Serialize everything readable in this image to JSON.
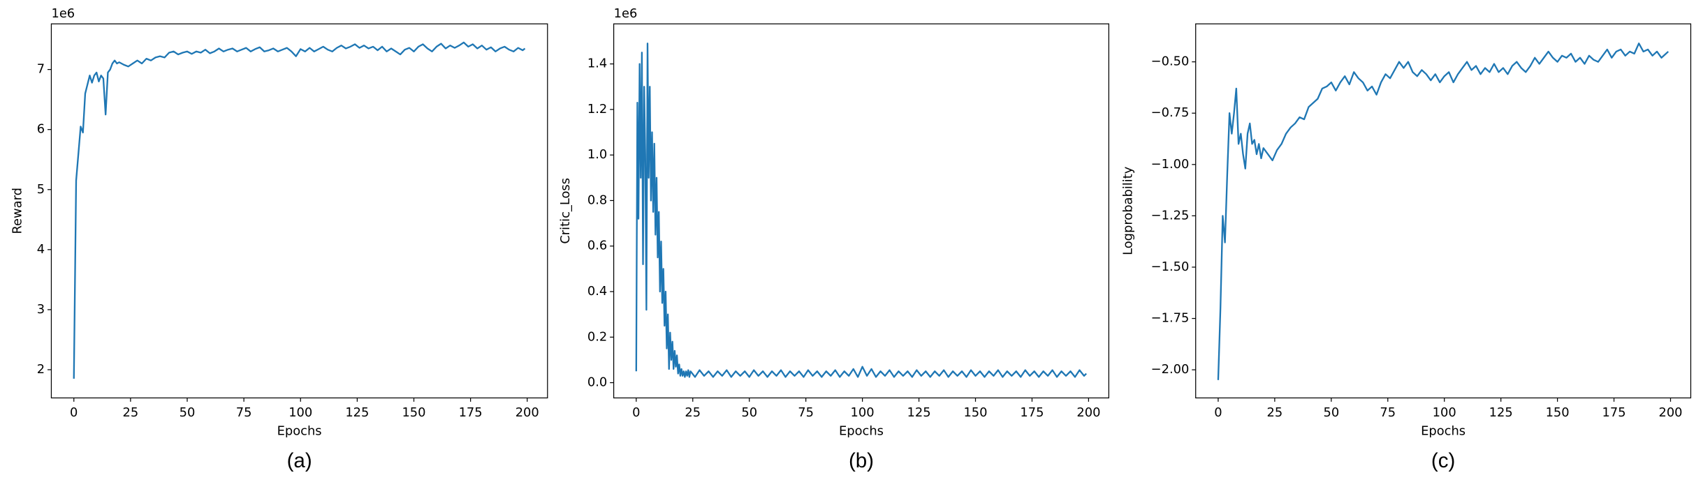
{
  "chart_data": [
    {
      "type": "line",
      "caption": "(a)",
      "xlabel": "Epochs",
      "ylabel": "Reward",
      "y_offset_text": "1e6",
      "color": "#1f77b4",
      "x": [
        0,
        1,
        2,
        3,
        4,
        5,
        6,
        7,
        8,
        9,
        10,
        11,
        12,
        13,
        14,
        15,
        16,
        17,
        18,
        19,
        20,
        22,
        24,
        26,
        28,
        30,
        32,
        34,
        36,
        38,
        40,
        42,
        44,
        46,
        48,
        50,
        52,
        54,
        56,
        58,
        60,
        62,
        64,
        66,
        68,
        70,
        72,
        74,
        76,
        78,
        80,
        82,
        84,
        86,
        88,
        90,
        92,
        94,
        96,
        98,
        100,
        102,
        104,
        106,
        108,
        110,
        112,
        114,
        116,
        118,
        120,
        122,
        124,
        126,
        128,
        130,
        132,
        134,
        136,
        138,
        140,
        142,
        144,
        146,
        148,
        150,
        152,
        154,
        156,
        158,
        160,
        162,
        164,
        166,
        168,
        170,
        172,
        174,
        176,
        178,
        180,
        182,
        184,
        186,
        188,
        190,
        192,
        194,
        196,
        198,
        199
      ],
      "values": [
        1.85,
        5.15,
        5.6,
        6.05,
        5.95,
        6.6,
        6.75,
        6.9,
        6.78,
        6.9,
        6.95,
        6.8,
        6.9,
        6.85,
        6.25,
        6.95,
        7.0,
        7.1,
        7.15,
        7.1,
        7.12,
        7.08,
        7.05,
        7.1,
        7.15,
        7.1,
        7.18,
        7.15,
        7.2,
        7.22,
        7.2,
        7.28,
        7.3,
        7.25,
        7.28,
        7.3,
        7.26,
        7.3,
        7.28,
        7.33,
        7.27,
        7.3,
        7.35,
        7.3,
        7.33,
        7.35,
        7.3,
        7.33,
        7.36,
        7.3,
        7.34,
        7.37,
        7.3,
        7.32,
        7.35,
        7.3,
        7.33,
        7.36,
        7.3,
        7.22,
        7.34,
        7.3,
        7.36,
        7.3,
        7.34,
        7.38,
        7.33,
        7.3,
        7.36,
        7.4,
        7.35,
        7.38,
        7.42,
        7.36,
        7.4,
        7.35,
        7.38,
        7.32,
        7.38,
        7.3,
        7.35,
        7.3,
        7.25,
        7.33,
        7.36,
        7.3,
        7.38,
        7.42,
        7.35,
        7.3,
        7.38,
        7.43,
        7.35,
        7.4,
        7.36,
        7.4,
        7.45,
        7.38,
        7.42,
        7.35,
        7.4,
        7.33,
        7.37,
        7.3,
        7.35,
        7.38,
        7.33,
        7.3,
        7.36,
        7.32,
        7.35
      ],
      "xlim": [
        -9.95,
        208.95
      ],
      "xticks": [
        0,
        25,
        50,
        75,
        100,
        125,
        150,
        175,
        200
      ],
      "ylim": [
        1.53,
        7.76
      ],
      "yticks": [
        2,
        3,
        4,
        5,
        6,
        7
      ]
    },
    {
      "type": "line",
      "caption": "(b)",
      "xlabel": "Epochs",
      "ylabel": "Critic_Loss",
      "y_offset_text": "1e6",
      "color": "#1f77b4",
      "x": [
        0,
        0.5,
        1,
        1.5,
        2,
        2.5,
        3,
        3.5,
        4,
        4.5,
        5,
        5.5,
        6,
        6.5,
        7,
        7.5,
        8,
        8.5,
        9,
        9.5,
        10,
        10.5,
        11,
        11.5,
        12,
        12.5,
        13,
        13.5,
        14,
        14.5,
        15,
        15.5,
        16,
        16.5,
        17,
        17.5,
        18,
        18.5,
        19,
        19.5,
        20,
        20.5,
        21,
        21.5,
        22,
        22.5,
        23,
        23.5,
        24,
        26,
        28,
        30,
        32,
        34,
        36,
        38,
        40,
        42,
        44,
        46,
        48,
        50,
        52,
        54,
        56,
        58,
        60,
        62,
        64,
        66,
        68,
        70,
        72,
        74,
        76,
        78,
        80,
        82,
        84,
        86,
        88,
        90,
        92,
        94,
        96,
        98,
        100,
        102,
        104,
        106,
        108,
        110,
        112,
        114,
        116,
        118,
        120,
        122,
        124,
        126,
        128,
        130,
        132,
        134,
        136,
        138,
        140,
        142,
        144,
        146,
        148,
        150,
        152,
        154,
        156,
        158,
        160,
        162,
        164,
        166,
        168,
        170,
        172,
        174,
        176,
        178,
        180,
        182,
        184,
        186,
        188,
        190,
        192,
        194,
        196,
        198,
        199
      ],
      "values": [
        0.05,
        1.23,
        0.72,
        1.4,
        0.9,
        1.45,
        0.52,
        1.3,
        1.0,
        0.32,
        1.49,
        0.9,
        1.3,
        0.8,
        1.1,
        0.75,
        1.05,
        0.65,
        0.9,
        0.55,
        0.75,
        0.4,
        0.62,
        0.35,
        0.5,
        0.25,
        0.4,
        0.15,
        0.3,
        0.06,
        0.22,
        0.1,
        0.18,
        0.06,
        0.14,
        0.07,
        0.12,
        0.04,
        0.08,
        0.03,
        0.06,
        0.03,
        0.05,
        0.025,
        0.05,
        0.03,
        0.055,
        0.025,
        0.05,
        0.025,
        0.055,
        0.03,
        0.05,
        0.025,
        0.05,
        0.03,
        0.055,
        0.025,
        0.05,
        0.03,
        0.05,
        0.025,
        0.055,
        0.03,
        0.05,
        0.025,
        0.05,
        0.03,
        0.055,
        0.025,
        0.05,
        0.03,
        0.05,
        0.025,
        0.055,
        0.03,
        0.05,
        0.025,
        0.05,
        0.03,
        0.055,
        0.025,
        0.05,
        0.03,
        0.06,
        0.025,
        0.07,
        0.03,
        0.06,
        0.025,
        0.05,
        0.03,
        0.055,
        0.025,
        0.05,
        0.03,
        0.05,
        0.025,
        0.055,
        0.03,
        0.05,
        0.025,
        0.05,
        0.03,
        0.055,
        0.025,
        0.05,
        0.03,
        0.05,
        0.025,
        0.055,
        0.03,
        0.05,
        0.025,
        0.05,
        0.03,
        0.055,
        0.025,
        0.05,
        0.03,
        0.05,
        0.025,
        0.055,
        0.03,
        0.05,
        0.025,
        0.05,
        0.03,
        0.055,
        0.025,
        0.05,
        0.03,
        0.05,
        0.025,
        0.055,
        0.03,
        0.04
      ],
      "xlim": [
        -9.95,
        208.95
      ],
      "xticks": [
        0,
        25,
        50,
        75,
        100,
        125,
        150,
        175,
        200
      ],
      "ylim": [
        -0.067,
        1.576
      ],
      "yticks": [
        {
          "value": 0,
          "label": "0.0"
        },
        {
          "value": 0.2,
          "label": "0.2"
        },
        {
          "value": 0.4,
          "label": "0.4"
        },
        {
          "value": 0.6,
          "label": "0.6"
        },
        {
          "value": 0.8,
          "label": "0.8"
        },
        {
          "value": 1,
          "label": "1.0"
        },
        {
          "value": 1.2,
          "label": "1.2"
        },
        {
          "value": 1.4,
          "label": "1.4"
        }
      ]
    },
    {
      "type": "line",
      "caption": "(c)",
      "xlabel": "Epochs",
      "ylabel": "Logprobability",
      "color": "#1f77b4",
      "x": [
        0,
        1,
        2,
        3,
        4,
        5,
        6,
        7,
        8,
        9,
        10,
        11,
        12,
        13,
        14,
        15,
        16,
        17,
        18,
        19,
        20,
        22,
        24,
        26,
        28,
        30,
        32,
        34,
        36,
        38,
        40,
        42,
        44,
        46,
        48,
        50,
        52,
        54,
        56,
        58,
        60,
        62,
        64,
        66,
        68,
        70,
        72,
        74,
        76,
        78,
        80,
        82,
        84,
        86,
        88,
        90,
        92,
        94,
        96,
        98,
        100,
        102,
        104,
        106,
        108,
        110,
        112,
        114,
        116,
        118,
        120,
        122,
        124,
        126,
        128,
        130,
        132,
        134,
        136,
        138,
        140,
        142,
        144,
        146,
        148,
        150,
        152,
        154,
        156,
        158,
        160,
        162,
        164,
        166,
        168,
        170,
        172,
        174,
        176,
        178,
        180,
        182,
        184,
        186,
        188,
        190,
        192,
        194,
        196,
        198,
        199
      ],
      "values": [
        -2.05,
        -1.7,
        -1.25,
        -1.38,
        -1.05,
        -0.75,
        -0.85,
        -0.75,
        -0.63,
        -0.9,
        -0.85,
        -0.95,
        -1.02,
        -0.85,
        -0.8,
        -0.9,
        -0.88,
        -0.95,
        -0.9,
        -0.97,
        -0.92,
        -0.95,
        -0.98,
        -0.93,
        -0.9,
        -0.85,
        -0.82,
        -0.8,
        -0.77,
        -0.78,
        -0.72,
        -0.7,
        -0.68,
        -0.63,
        -0.62,
        -0.6,
        -0.64,
        -0.6,
        -0.57,
        -0.61,
        -0.55,
        -0.58,
        -0.6,
        -0.64,
        -0.62,
        -0.66,
        -0.6,
        -0.56,
        -0.58,
        -0.54,
        -0.5,
        -0.53,
        -0.5,
        -0.55,
        -0.57,
        -0.54,
        -0.56,
        -0.59,
        -0.56,
        -0.6,
        -0.57,
        -0.55,
        -0.6,
        -0.56,
        -0.53,
        -0.5,
        -0.54,
        -0.52,
        -0.56,
        -0.53,
        -0.55,
        -0.51,
        -0.55,
        -0.53,
        -0.56,
        -0.52,
        -0.5,
        -0.53,
        -0.55,
        -0.52,
        -0.48,
        -0.51,
        -0.48,
        -0.45,
        -0.48,
        -0.5,
        -0.47,
        -0.48,
        -0.46,
        -0.5,
        -0.48,
        -0.51,
        -0.47,
        -0.49,
        -0.5,
        -0.47,
        -0.44,
        -0.48,
        -0.45,
        -0.44,
        -0.47,
        -0.45,
        -0.46,
        -0.41,
        -0.45,
        -0.44,
        -0.47,
        -0.45,
        -0.48,
        -0.46,
        -0.45
      ],
      "xlim": [
        -9.95,
        208.95
      ],
      "xticks": [
        0,
        25,
        50,
        75,
        100,
        125,
        150,
        175,
        200
      ],
      "ylim": [
        -2.137,
        -0.315
      ],
      "yticks": [
        {
          "value": -2,
          "label": "−2.00"
        },
        {
          "value": -1.75,
          "label": "−1.75"
        },
        {
          "value": -1.5,
          "label": "−1.50"
        },
        {
          "value": -1.25,
          "label": "−1.25"
        },
        {
          "value": -1,
          "label": "−1.00"
        },
        {
          "value": -0.75,
          "label": "−0.75"
        },
        {
          "value": -0.5,
          "label": "−0.50"
        }
      ]
    }
  ]
}
